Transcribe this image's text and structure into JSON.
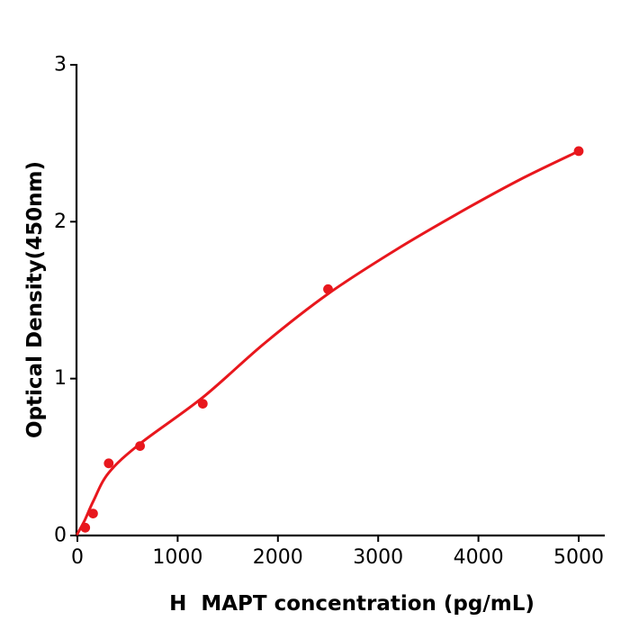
{
  "chart_data": {
    "type": "scatter",
    "title": "",
    "xlabel": "H  MAPT concentration (pg/mL)",
    "ylabel": "Optical Density(450nm)",
    "xlim": [
      0,
      5260
    ],
    "ylim": [
      0,
      3
    ],
    "x_ticks": [
      0,
      1000,
      2000,
      3000,
      4000,
      5000
    ],
    "y_ticks": [
      0,
      1,
      2,
      3
    ],
    "grid": false,
    "legend_position": "none",
    "series": [
      {
        "name": "standard-data-points",
        "type": "scatter",
        "color": "#e8171d",
        "marker": "circle",
        "x": [
          78.1,
          156.2,
          312.5,
          625,
          1250,
          2500,
          5000
        ],
        "y": [
          0.05,
          0.14,
          0.46,
          0.57,
          0.84,
          1.57,
          2.45
        ]
      },
      {
        "name": "fitted-curve",
        "type": "line",
        "color": "#e8171d",
        "x": [
          0,
          75,
          160,
          312,
          625,
          1250,
          1875,
          2500,
          3200,
          3900,
          4450,
          5000
        ],
        "y": [
          0.01,
          0.1,
          0.22,
          0.4,
          0.585,
          0.88,
          1.23,
          1.54,
          1.83,
          2.09,
          2.28,
          2.45
        ]
      }
    ]
  },
  "style": {
    "accent_red": "#e8171d",
    "axis_color": "#000000",
    "background": "#ffffff"
  }
}
